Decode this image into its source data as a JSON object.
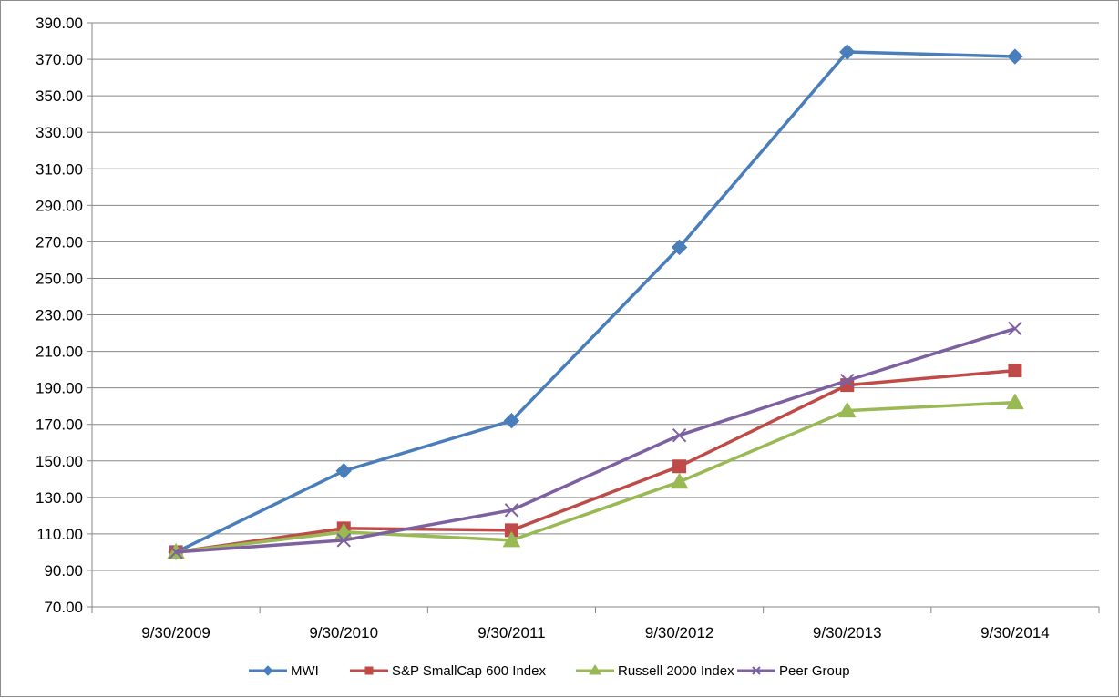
{
  "chart_data": {
    "type": "line",
    "title": "",
    "xlabel": "",
    "ylabel": "",
    "categories": [
      "9/30/2009",
      "9/30/2010",
      "9/30/2011",
      "9/30/2012",
      "9/30/2013",
      "9/30/2014"
    ],
    "ylim": [
      70,
      390
    ],
    "ytick_step": 20,
    "ytick_labels": [
      "70.00",
      "90.00",
      "110.00",
      "130.00",
      "150.00",
      "170.00",
      "190.00",
      "210.00",
      "230.00",
      "250.00",
      "270.00",
      "290.00",
      "310.00",
      "330.00",
      "350.00",
      "370.00",
      "390.00"
    ],
    "grid": true,
    "legend_placement": "bottom",
    "series": [
      {
        "name": "MWI",
        "color": "#4a7ebb",
        "marker": "diamond",
        "values": [
          100.0,
          144.5,
          172.0,
          267.0,
          374.0,
          371.5
        ]
      },
      {
        "name": "S&P SmallCap 600 Index",
        "color": "#be4b48",
        "marker": "square",
        "values": [
          100.0,
          113.0,
          112.0,
          147.0,
          191.5,
          199.5
        ]
      },
      {
        "name": "Russell 2000 Index",
        "color": "#98b954",
        "marker": "triangle",
        "values": [
          100.0,
          111.0,
          106.5,
          138.5,
          177.5,
          182.0
        ]
      },
      {
        "name": "Peer Group",
        "color": "#7d60a0",
        "marker": "x",
        "values": [
          100.0,
          106.5,
          123.0,
          164.0,
          194.0,
          222.5
        ]
      }
    ]
  }
}
